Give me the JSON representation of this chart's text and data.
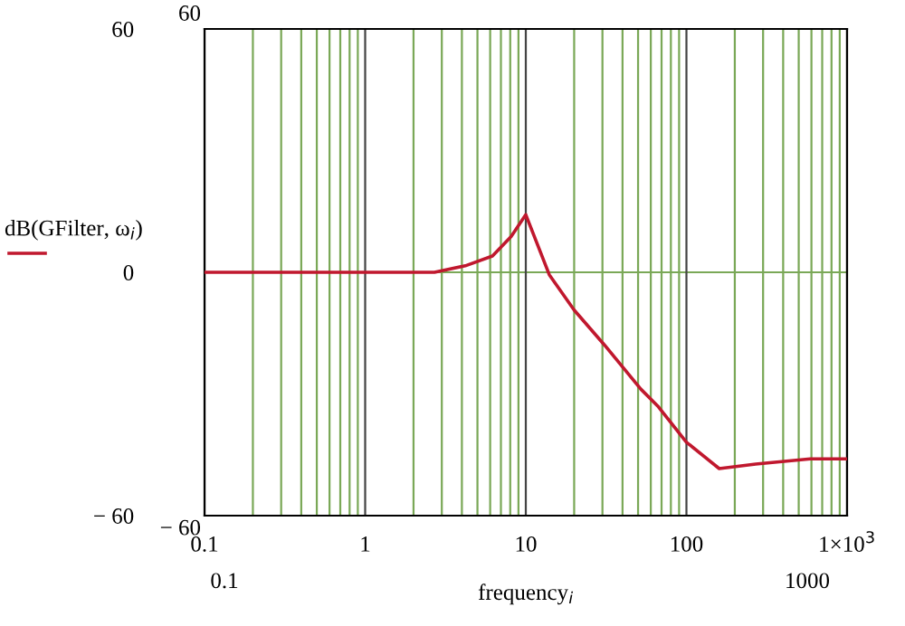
{
  "chart_data": {
    "type": "line",
    "xlabel": "frequency$_{i}$",
    "ylabel": "dB(GFilter, ω$_{i}$)",
    "log": "x",
    "xlim": [
      0.1,
      1000
    ],
    "ylim": [
      -60,
      60
    ],
    "xticks": [
      0.1,
      {
        "value": 0.2,
        "label": null
      },
      {
        "value": 0.3,
        "label": null
      },
      {
        "value": 0.4,
        "label": null
      },
      {
        "value": 0.5,
        "label": null
      },
      {
        "value": 0.6,
        "label": null
      },
      {
        "value": 0.7,
        "label": null
      },
      {
        "value": 0.8,
        "label": null
      },
      {
        "value": 0.9,
        "label": null
      },
      1,
      {
        "value": 2,
        "label": null
      },
      {
        "value": 3,
        "label": null
      },
      {
        "value": 4,
        "label": null
      },
      {
        "value": 5,
        "label": null
      },
      {
        "value": 6,
        "label": null
      },
      {
        "value": 7,
        "label": null
      },
      {
        "value": 8,
        "label": null
      },
      {
        "value": 9,
        "label": null
      },
      10,
      {
        "value": 20,
        "label": null
      },
      {
        "value": 30,
        "label": null
      },
      {
        "value": 40,
        "label": null
      },
      {
        "value": 50,
        "label": null
      },
      {
        "value": 60,
        "label": null
      },
      {
        "value": 70,
        "label": null
      },
      {
        "value": 80,
        "label": null
      },
      {
        "value": 90,
        "label": null
      },
      100,
      {
        "value": 200,
        "label": null
      },
      {
        "value": 300,
        "label": null
      },
      {
        "value": 400,
        "label": null
      },
      {
        "value": 500,
        "label": null
      },
      {
        "value": 600,
        "label": null
      },
      {
        "value": 700,
        "label": null
      },
      {
        "value": 800,
        "label": null
      },
      {
        "value": 900,
        "label": null
      },
      {
        "value": 1000,
        "label": "1×10$^{3}$"
      }
    ],
    "yticks": [
      60,
      0,
      {
        "value": -60,
        "label": "− 60"
      }
    ],
    "grid": "x",
    "legend": false,
    "ref_lines": [
      {
        "axis": "y",
        "value": 0,
        "color": "#7aa857"
      }
    ],
    "annotations": [
      "60",
      "− 60",
      "0.1",
      "1000"
    ],
    "series": [
      {
        "color": "#c0182e",
        "x": [
          0.1,
          1,
          2.7,
          4.2,
          6.2,
          8.1,
          10,
          14,
          20,
          31,
          52,
          67,
          100,
          160,
          270,
          590,
          1000
        ],
        "values": [
          0,
          0,
          0,
          1.6,
          4.0,
          8.8,
          14.2,
          -0.6,
          -9.3,
          -18,
          -28.8,
          -33.2,
          -41.9,
          -48.4,
          -47.3,
          -46,
          -46
        ]
      }
    ]
  }
}
